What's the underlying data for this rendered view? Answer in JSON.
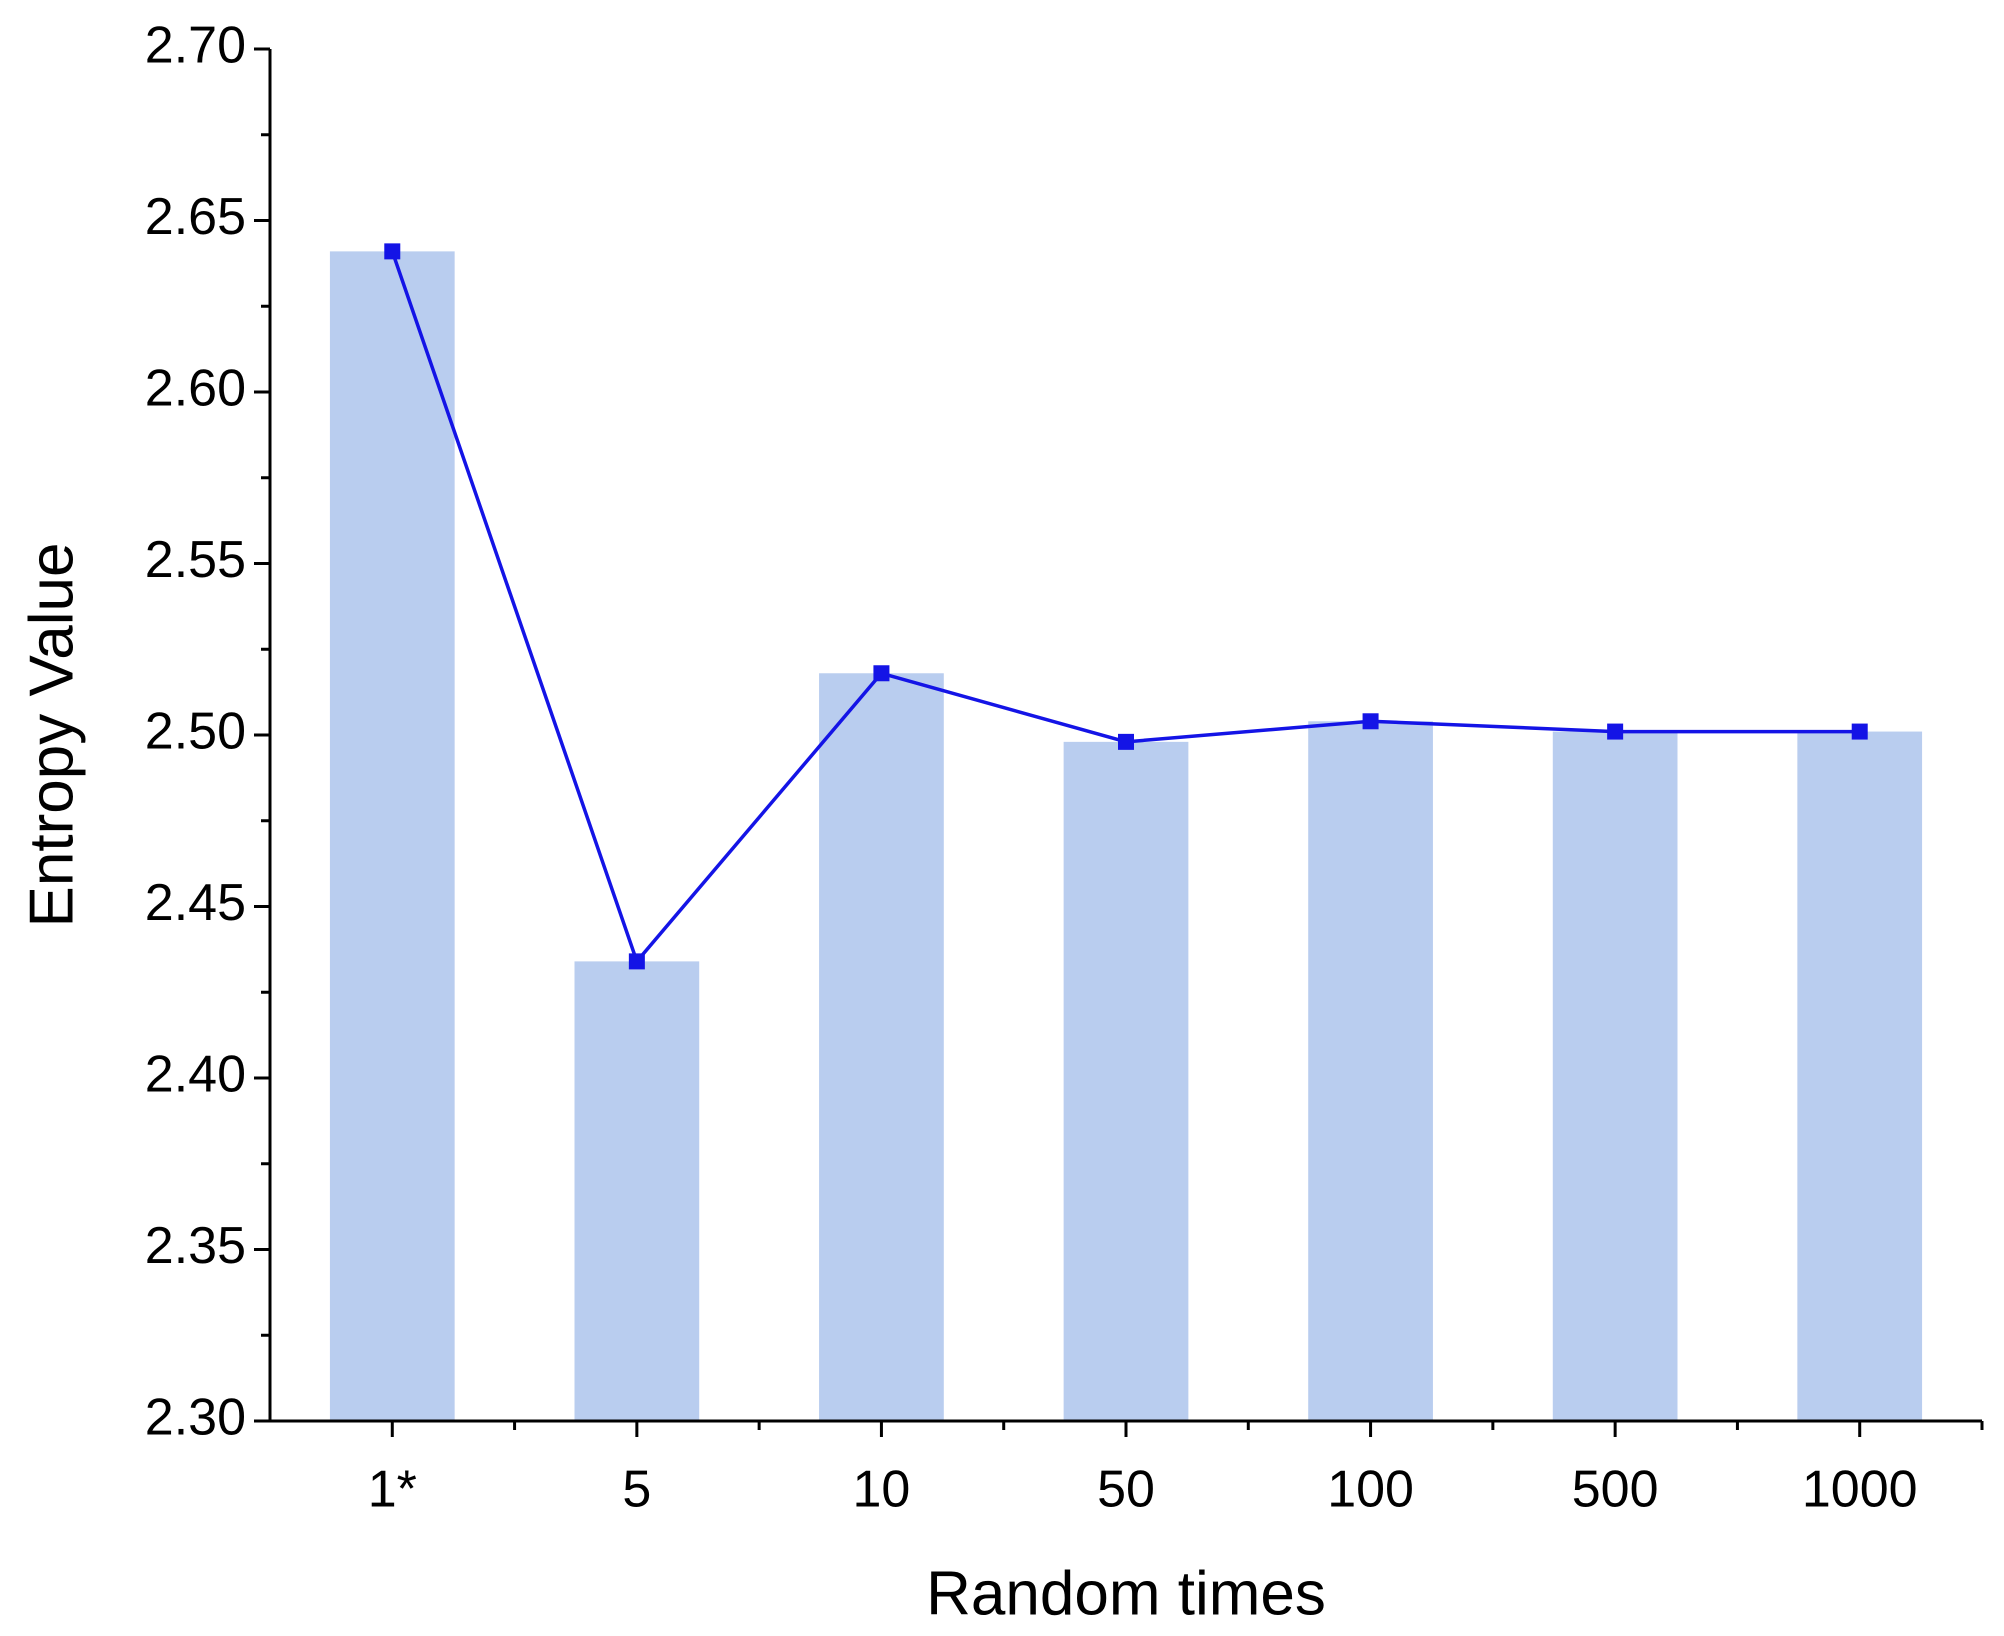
{
  "chart_data": {
    "type": "combo",
    "x_label": "Random times",
    "y_label": "Entropy Value",
    "categories": [
      "1*",
      "5",
      "10",
      "50",
      "100",
      "500",
      "1000"
    ],
    "values": [
      2.641,
      2.434,
      2.518,
      2.498,
      2.504,
      2.501,
      2.501
    ],
    "bar_color": "#b9cdef",
    "line_color": "#1414e6",
    "ylim": [
      2.3,
      2.7
    ],
    "yticks": [
      {
        "value": 2.3,
        "label": "2.30"
      },
      {
        "value": 2.35,
        "label": "2.35"
      },
      {
        "value": 2.4,
        "label": "2.40"
      },
      {
        "value": 2.45,
        "label": "2.45"
      },
      {
        "value": 2.5,
        "label": "2.50"
      },
      {
        "value": 2.55,
        "label": "2.55"
      },
      {
        "value": 2.6,
        "label": "2.60"
      },
      {
        "value": 2.65,
        "label": "2.65"
      },
      {
        "value": 2.7,
        "label": "2.70"
      }
    ],
    "grid": false
  }
}
